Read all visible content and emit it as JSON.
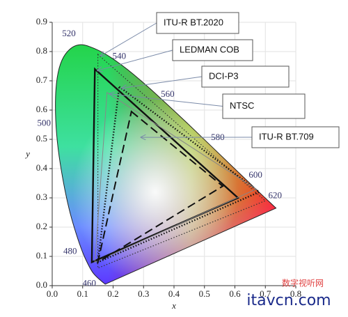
{
  "chart_data": {
    "type": "chromaticity",
    "x_label": "x",
    "y_label": "y",
    "xlim": [
      0,
      0.8
    ],
    "ylim": [
      0,
      0.9
    ],
    "xticks": [
      {
        "value": 0,
        "label": "0.0"
      },
      0.1,
      0.2,
      0.3,
      0.4,
      0.5,
      0.6,
      0.7,
      0.8
    ],
    "yticks": [
      {
        "value": 0,
        "label": "0.0"
      },
      0.1,
      0.2,
      0.3,
      0.4,
      0.5,
      0.6,
      0.7,
      0.8,
      0.9
    ],
    "grid": true,
    "locus": {
      "wavelengths": [
        null,
        460,
        null,
        480,
        null,
        500,
        null,
        520,
        null,
        540,
        null,
        560,
        null,
        580,
        null,
        600,
        null,
        620,
        null
      ],
      "x": [
        0.174,
        0.144,
        0.124,
        0.091,
        0.045,
        0.008,
        0.014,
        0.074,
        0.155,
        0.23,
        0.302,
        0.373,
        0.444,
        0.512,
        0.575,
        0.627,
        0.665,
        0.691,
        0.735
      ],
      "y": [
        0.005,
        0.03,
        0.058,
        0.133,
        0.295,
        0.538,
        0.75,
        0.834,
        0.806,
        0.754,
        0.692,
        0.624,
        0.555,
        0.487,
        0.424,
        0.372,
        0.334,
        0.308,
        0.265
      ]
    },
    "series": [
      {
        "name": "ITU-R BT.2020",
        "color": "#333333",
        "style": "dotted-fine",
        "x": [
          0.15,
          0.7,
          0.15
        ],
        "y": [
          0.79,
          0.29,
          0.06
        ]
      },
      {
        "name": "LEDMAN COB",
        "color": "#111111",
        "style": "solid",
        "x": [
          0.14,
          0.61,
          0.13
        ],
        "y": [
          0.74,
          0.3,
          0.08
        ]
      },
      {
        "name": "DCI-P3",
        "color": "#111111",
        "style": "dotted",
        "x": [
          0.22,
          0.68,
          0.15
        ],
        "y": [
          0.68,
          0.32,
          0.08
        ]
      },
      {
        "name": "NTSC",
        "color": "#888888",
        "style": "thin",
        "x": [
          0.18,
          0.67,
          0.14
        ],
        "y": [
          0.66,
          0.33,
          0.08
        ]
      },
      {
        "name": "ITU-R BT.709",
        "color": "#111111",
        "style": "dashed",
        "x": [
          0.26,
          0.56,
          0.15
        ],
        "y": [
          0.595,
          0.34,
          0.08
        ]
      }
    ],
    "watermark": "数字视听网",
    "site": "itavcn.com"
  }
}
